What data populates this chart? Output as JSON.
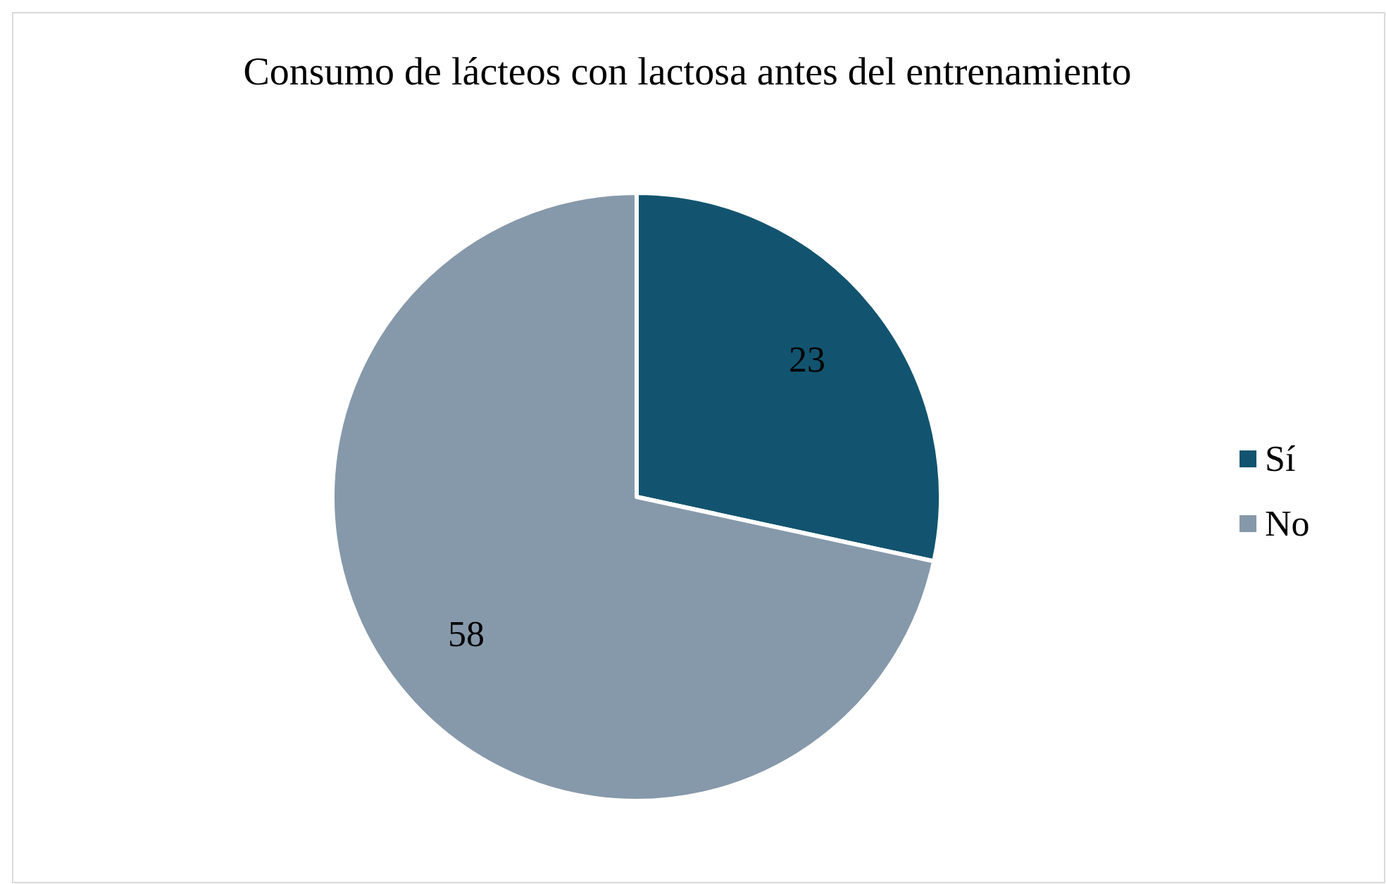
{
  "chart_data": {
    "type": "pie",
    "title": "Consumo de lácteos con lactosa antes del entrenamiento",
    "categories": [
      "Sí",
      "No"
    ],
    "values": [
      23,
      58
    ],
    "colors": [
      "#12546f",
      "#8699aa"
    ],
    "data_labels": true,
    "legend": "right"
  }
}
